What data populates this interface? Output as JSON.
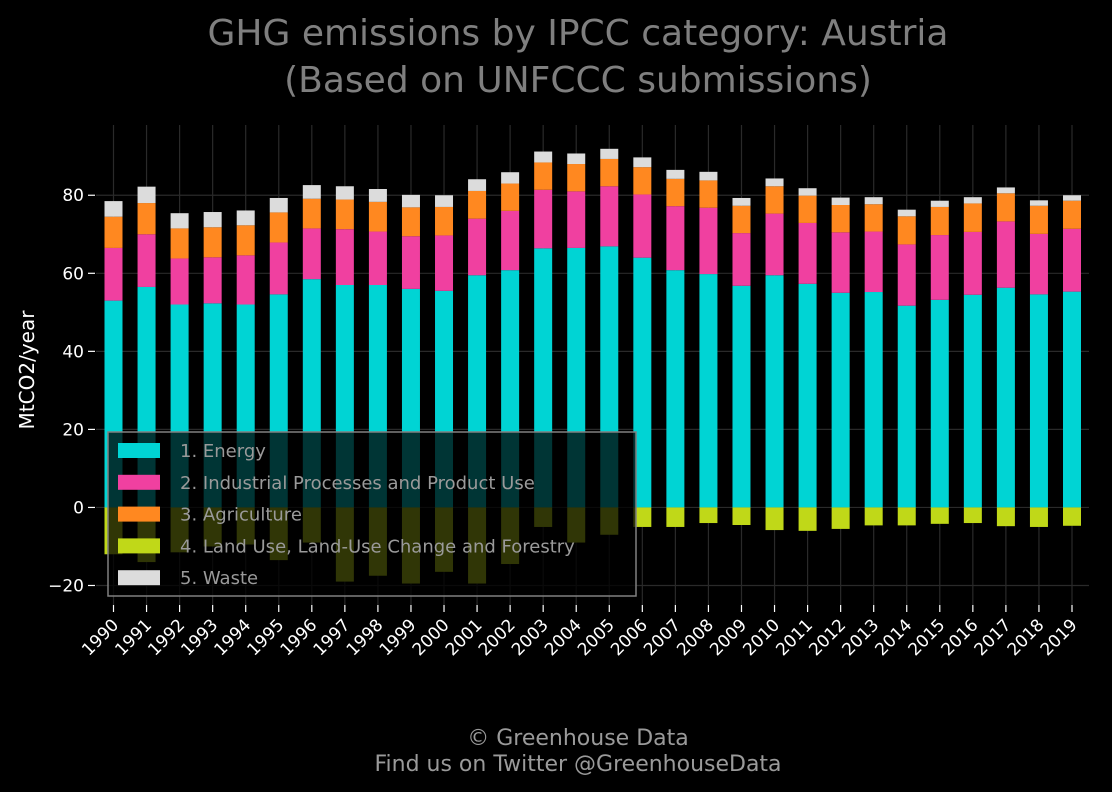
{
  "chart_data": {
    "type": "bar",
    "stacked": true,
    "title_lines": [
      "GHG emissions by IPCC category: Austria",
      "(Based on UNFCCC submissions)"
    ],
    "ylabel": "MtCO2/year",
    "ylim": [
      -25,
      98
    ],
    "yticks": [
      -20,
      0,
      20,
      40,
      60,
      80
    ],
    "ytick_labels": [
      "−20",
      "0",
      "20",
      "40",
      "60",
      "80"
    ],
    "grid": true,
    "legend_position": "lower-left",
    "categories": [
      "1990",
      "1991",
      "1992",
      "1993",
      "1994",
      "1995",
      "1996",
      "1997",
      "1998",
      "1999",
      "2000",
      "2001",
      "2002",
      "2003",
      "2004",
      "2005",
      "2006",
      "2007",
      "2008",
      "2009",
      "2010",
      "2011",
      "2012",
      "2013",
      "2014",
      "2015",
      "2016",
      "2017",
      "2018",
      "2019"
    ],
    "series": [
      {
        "name": "1. Energy",
        "color": "#00d4d4",
        "values": [
          53,
          56.5,
          52,
          52.3,
          52,
          54.6,
          58.5,
          57,
          57,
          56,
          55.5,
          59.5,
          60.8,
          66.4,
          66.5,
          66.9,
          64,
          60.8,
          59.8,
          56.8,
          59.5,
          57.3,
          55,
          55.2,
          51.7,
          53.2,
          54.5,
          56.3,
          54.6,
          55.3
        ]
      },
      {
        "name": "2. Industrial Processes and Product Use",
        "color": "#f040a0",
        "values": [
          13.5,
          13.5,
          11.8,
          11.8,
          12.6,
          13.3,
          13,
          14.3,
          13.7,
          13.5,
          14.2,
          14.5,
          15.2,
          15,
          14.5,
          15.4,
          16.2,
          16.4,
          17,
          13.5,
          15.8,
          15.6,
          15.5,
          15.5,
          15.7,
          16.6,
          16.1,
          17,
          15.5,
          16.1
        ]
      },
      {
        "name": "3. Agriculture",
        "color": "#ff8820",
        "values": [
          8,
          8,
          7.7,
          7.7,
          7.7,
          7.7,
          7.6,
          7.6,
          7.6,
          7.4,
          7.3,
          7.1,
          7,
          7,
          7,
          7,
          7,
          7,
          7,
          7,
          7,
          7,
          7,
          7,
          7.2,
          7.2,
          7.3,
          7.2,
          7.2,
          7.2
        ]
      },
      {
        "name": "4. Land Use, Land-Use Change and Forestry",
        "color": "#c0d818",
        "values": [
          -12,
          -14,
          -11.5,
          -10,
          -9.5,
          -13.5,
          -9,
          -19,
          -17.5,
          -19.5,
          -16.5,
          -19.5,
          -14.5,
          -5,
          -9,
          -7,
          -5,
          -5,
          -4,
          -4.5,
          -5.8,
          -6,
          -5.5,
          -4.6,
          -4.6,
          -4.2,
          -4,
          -4.8,
          -5,
          -4.7
        ]
      },
      {
        "name": "5. Waste",
        "color": "#dcdcdc",
        "values": [
          4,
          4.2,
          3.9,
          3.9,
          3.8,
          3.7,
          3.5,
          3.4,
          3.3,
          3.2,
          3,
          3,
          2.9,
          2.8,
          2.7,
          2.6,
          2.5,
          2.3,
          2.2,
          2,
          2,
          1.9,
          1.9,
          1.8,
          1.7,
          1.6,
          1.6,
          1.5,
          1.4,
          1.4
        ]
      }
    ]
  },
  "footer": {
    "line1": "© Greenhouse Data",
    "line2": "Find us on Twitter @GreenhouseData"
  }
}
